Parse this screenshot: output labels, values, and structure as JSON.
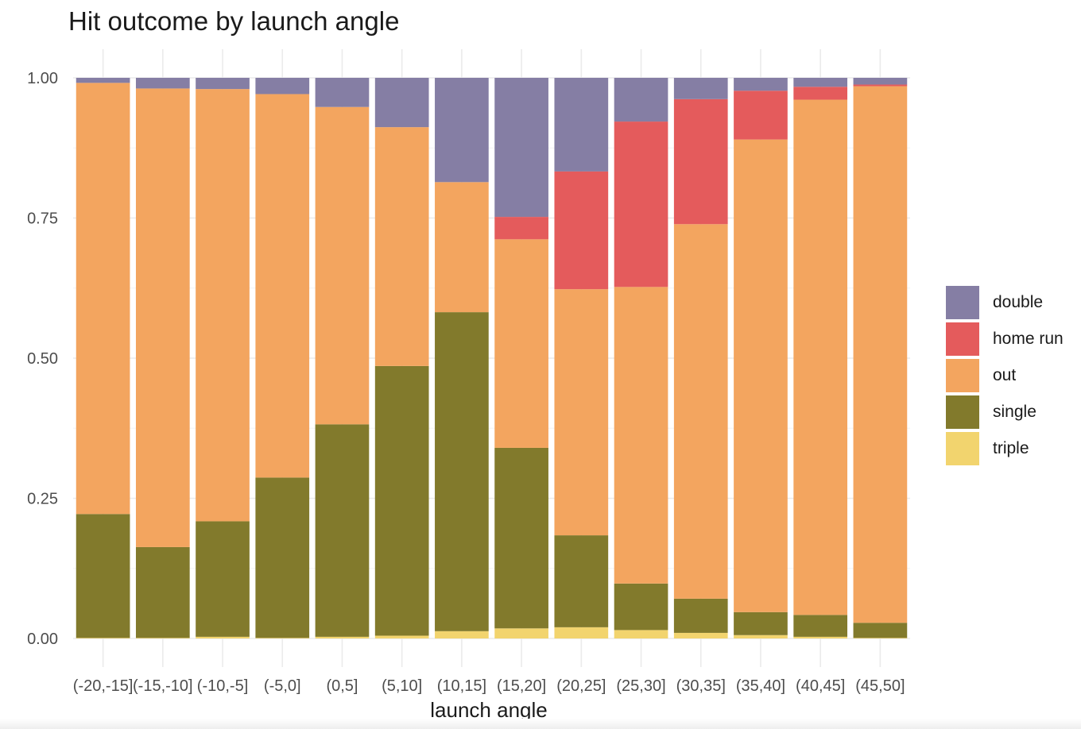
{
  "chart_data": {
    "type": "bar",
    "stacked": true,
    "normalized": true,
    "title": "Hit outcome by launch angle",
    "xlabel": "launch angle",
    "ylabel": "",
    "ylim": [
      0,
      1
    ],
    "yticks": [
      "0.00",
      "0.25",
      "0.50",
      "0.75",
      "1.00"
    ],
    "grid": true,
    "legend_position": "right",
    "categories": [
      "(-20,-15]",
      "(-15,-10]",
      "(-10,-5]",
      "(-5,0]",
      "(0,5]",
      "(5,10]",
      "(10,15]",
      "(15,20]",
      "(20,25]",
      "(25,30]",
      "(30,35]",
      "(35,40]",
      "(40,45]",
      "(45,50]"
    ],
    "series": [
      {
        "name": "triple",
        "color": "#F2D46E",
        "values": [
          0.001,
          0.001,
          0.003,
          0.001,
          0.003,
          0.005,
          0.013,
          0.018,
          0.02,
          0.015,
          0.01,
          0.006,
          0.003,
          0.001
        ]
      },
      {
        "name": "single",
        "color": "#827A2C",
        "values": [
          0.221,
          0.162,
          0.206,
          0.286,
          0.379,
          0.481,
          0.569,
          0.322,
          0.164,
          0.083,
          0.061,
          0.041,
          0.039,
          0.027
        ]
      },
      {
        "name": "out",
        "color": "#F3A55F",
        "values": [
          0.769,
          0.818,
          0.771,
          0.684,
          0.566,
          0.426,
          0.232,
          0.372,
          0.439,
          0.529,
          0.668,
          0.843,
          0.919,
          0.957
        ]
      },
      {
        "name": "home run",
        "color": "#E45B5C",
        "values": [
          0.0,
          0.0,
          0.0,
          0.0,
          0.0,
          0.0,
          0.0,
          0.04,
          0.21,
          0.295,
          0.223,
          0.087,
          0.023,
          0.003
        ]
      },
      {
        "name": "double",
        "color": "#857EA4",
        "values": [
          0.009,
          0.019,
          0.02,
          0.029,
          0.052,
          0.088,
          0.186,
          0.248,
          0.167,
          0.078,
          0.038,
          0.023,
          0.016,
          0.012
        ]
      }
    ]
  },
  "legend": {
    "items": [
      {
        "label": "double",
        "color": "#857EA4"
      },
      {
        "label": "home run",
        "color": "#E45B5C"
      },
      {
        "label": "out",
        "color": "#F3A55F"
      },
      {
        "label": "single",
        "color": "#827A2C"
      },
      {
        "label": "triple",
        "color": "#F2D46E"
      }
    ]
  }
}
